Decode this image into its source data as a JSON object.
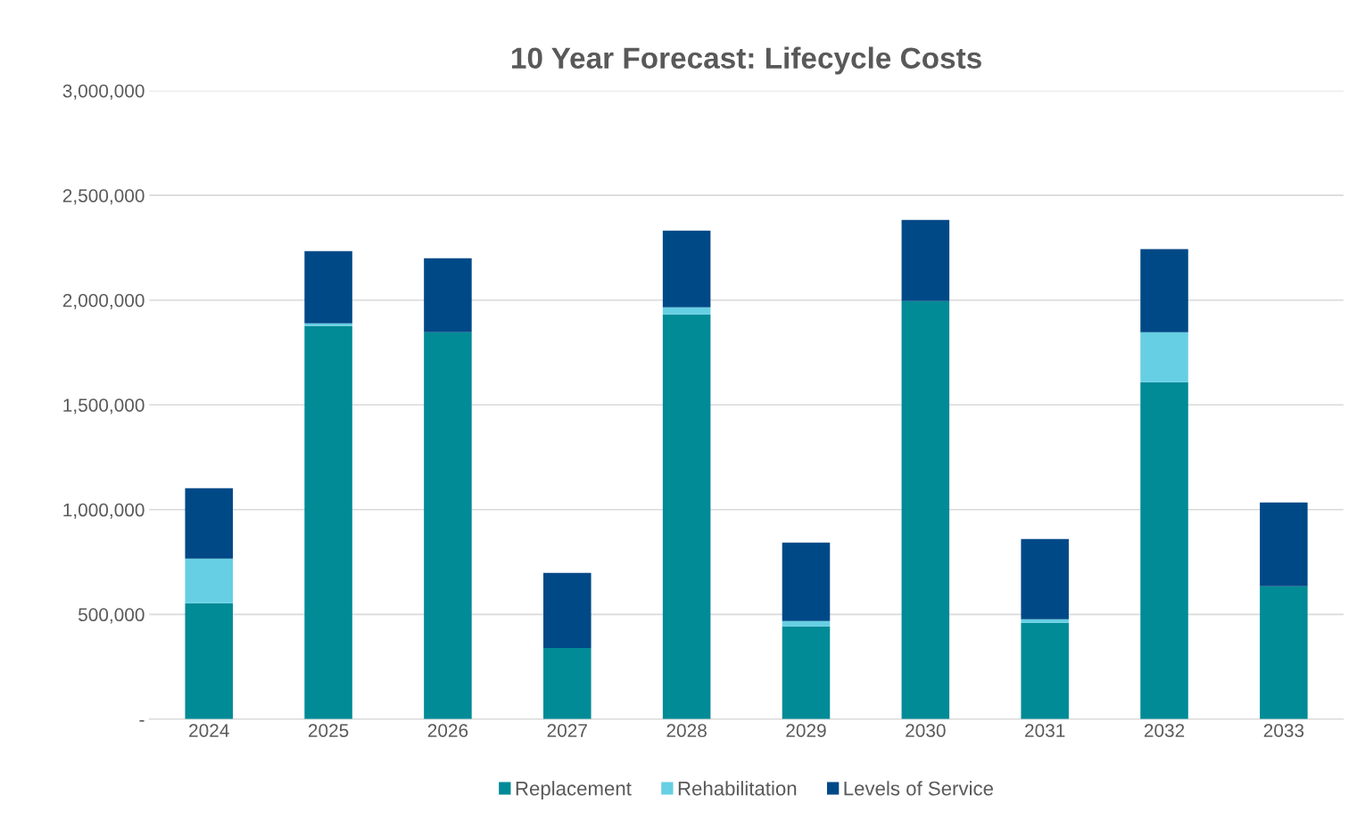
{
  "chart_data": {
    "type": "bar",
    "title": "10 Year Forecast: Lifecycle Costs",
    "categories": [
      "2024",
      "2025",
      "2026",
      "2027",
      "2028",
      "2029",
      "2030",
      "2031",
      "2032",
      "2033"
    ],
    "stacked": true,
    "series": [
      {
        "name": "Replacement",
        "color": "#008b96",
        "values": [
          553000,
          1877000,
          1847000,
          340000,
          1932000,
          443000,
          1996000,
          460000,
          1609000,
          634000
        ]
      },
      {
        "name": "Rehabilitation",
        "color": "#66cfe3",
        "values": [
          213000,
          12000,
          0,
          0,
          34000,
          25000,
          0,
          17000,
          238000,
          0
        ]
      },
      {
        "name": "Levels of Service",
        "color": "#004987",
        "values": [
          336000,
          345000,
          353000,
          358000,
          366000,
          375000,
          387000,
          383000,
          396000,
          400000
        ]
      }
    ],
    "ylim": [
      0,
      3000000
    ],
    "yticks": [
      {
        "value": 0,
        "label": "-"
      },
      {
        "value": 500000,
        "label": "500,000"
      },
      {
        "value": 1000000,
        "label": "1,000,000"
      },
      {
        "value": 1500000,
        "label": "1,500,000"
      },
      {
        "value": 2000000,
        "label": "2,000,000"
      },
      {
        "value": 2500000,
        "label": "2,500,000"
      },
      {
        "value": 3000000,
        "label": "3,000,000"
      }
    ],
    "grid": "y",
    "legend": "bottom"
  }
}
